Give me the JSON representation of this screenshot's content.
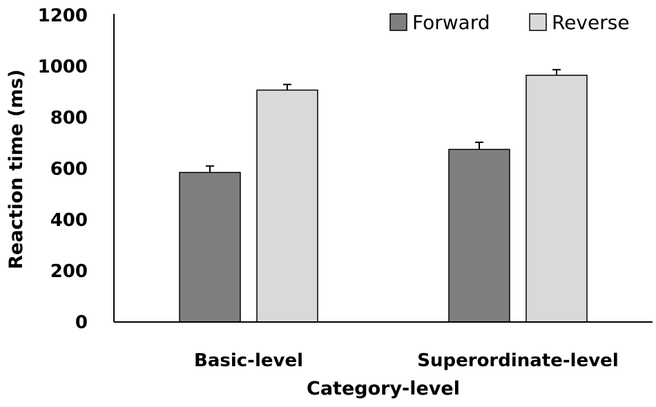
{
  "chart_data": {
    "type": "bar",
    "title": "",
    "xlabel": "Category-level",
    "ylabel": "Reaction time (ms)",
    "categories": [
      "Basic-level",
      "Superordinate-level"
    ],
    "series": [
      {
        "name": "Forward",
        "values": [
          585,
          675
        ],
        "errors": [
          25,
          28
        ],
        "color": "#7f7f7f"
      },
      {
        "name": "Reverse",
        "values": [
          907,
          965
        ],
        "errors": [
          22,
          22
        ],
        "color": "#d9d9d9"
      }
    ],
    "ylim": [
      0,
      1200
    ],
    "yticks": [
      0,
      200,
      400,
      600,
      800,
      1000,
      1200
    ],
    "grid": false,
    "legend": "top-right"
  }
}
